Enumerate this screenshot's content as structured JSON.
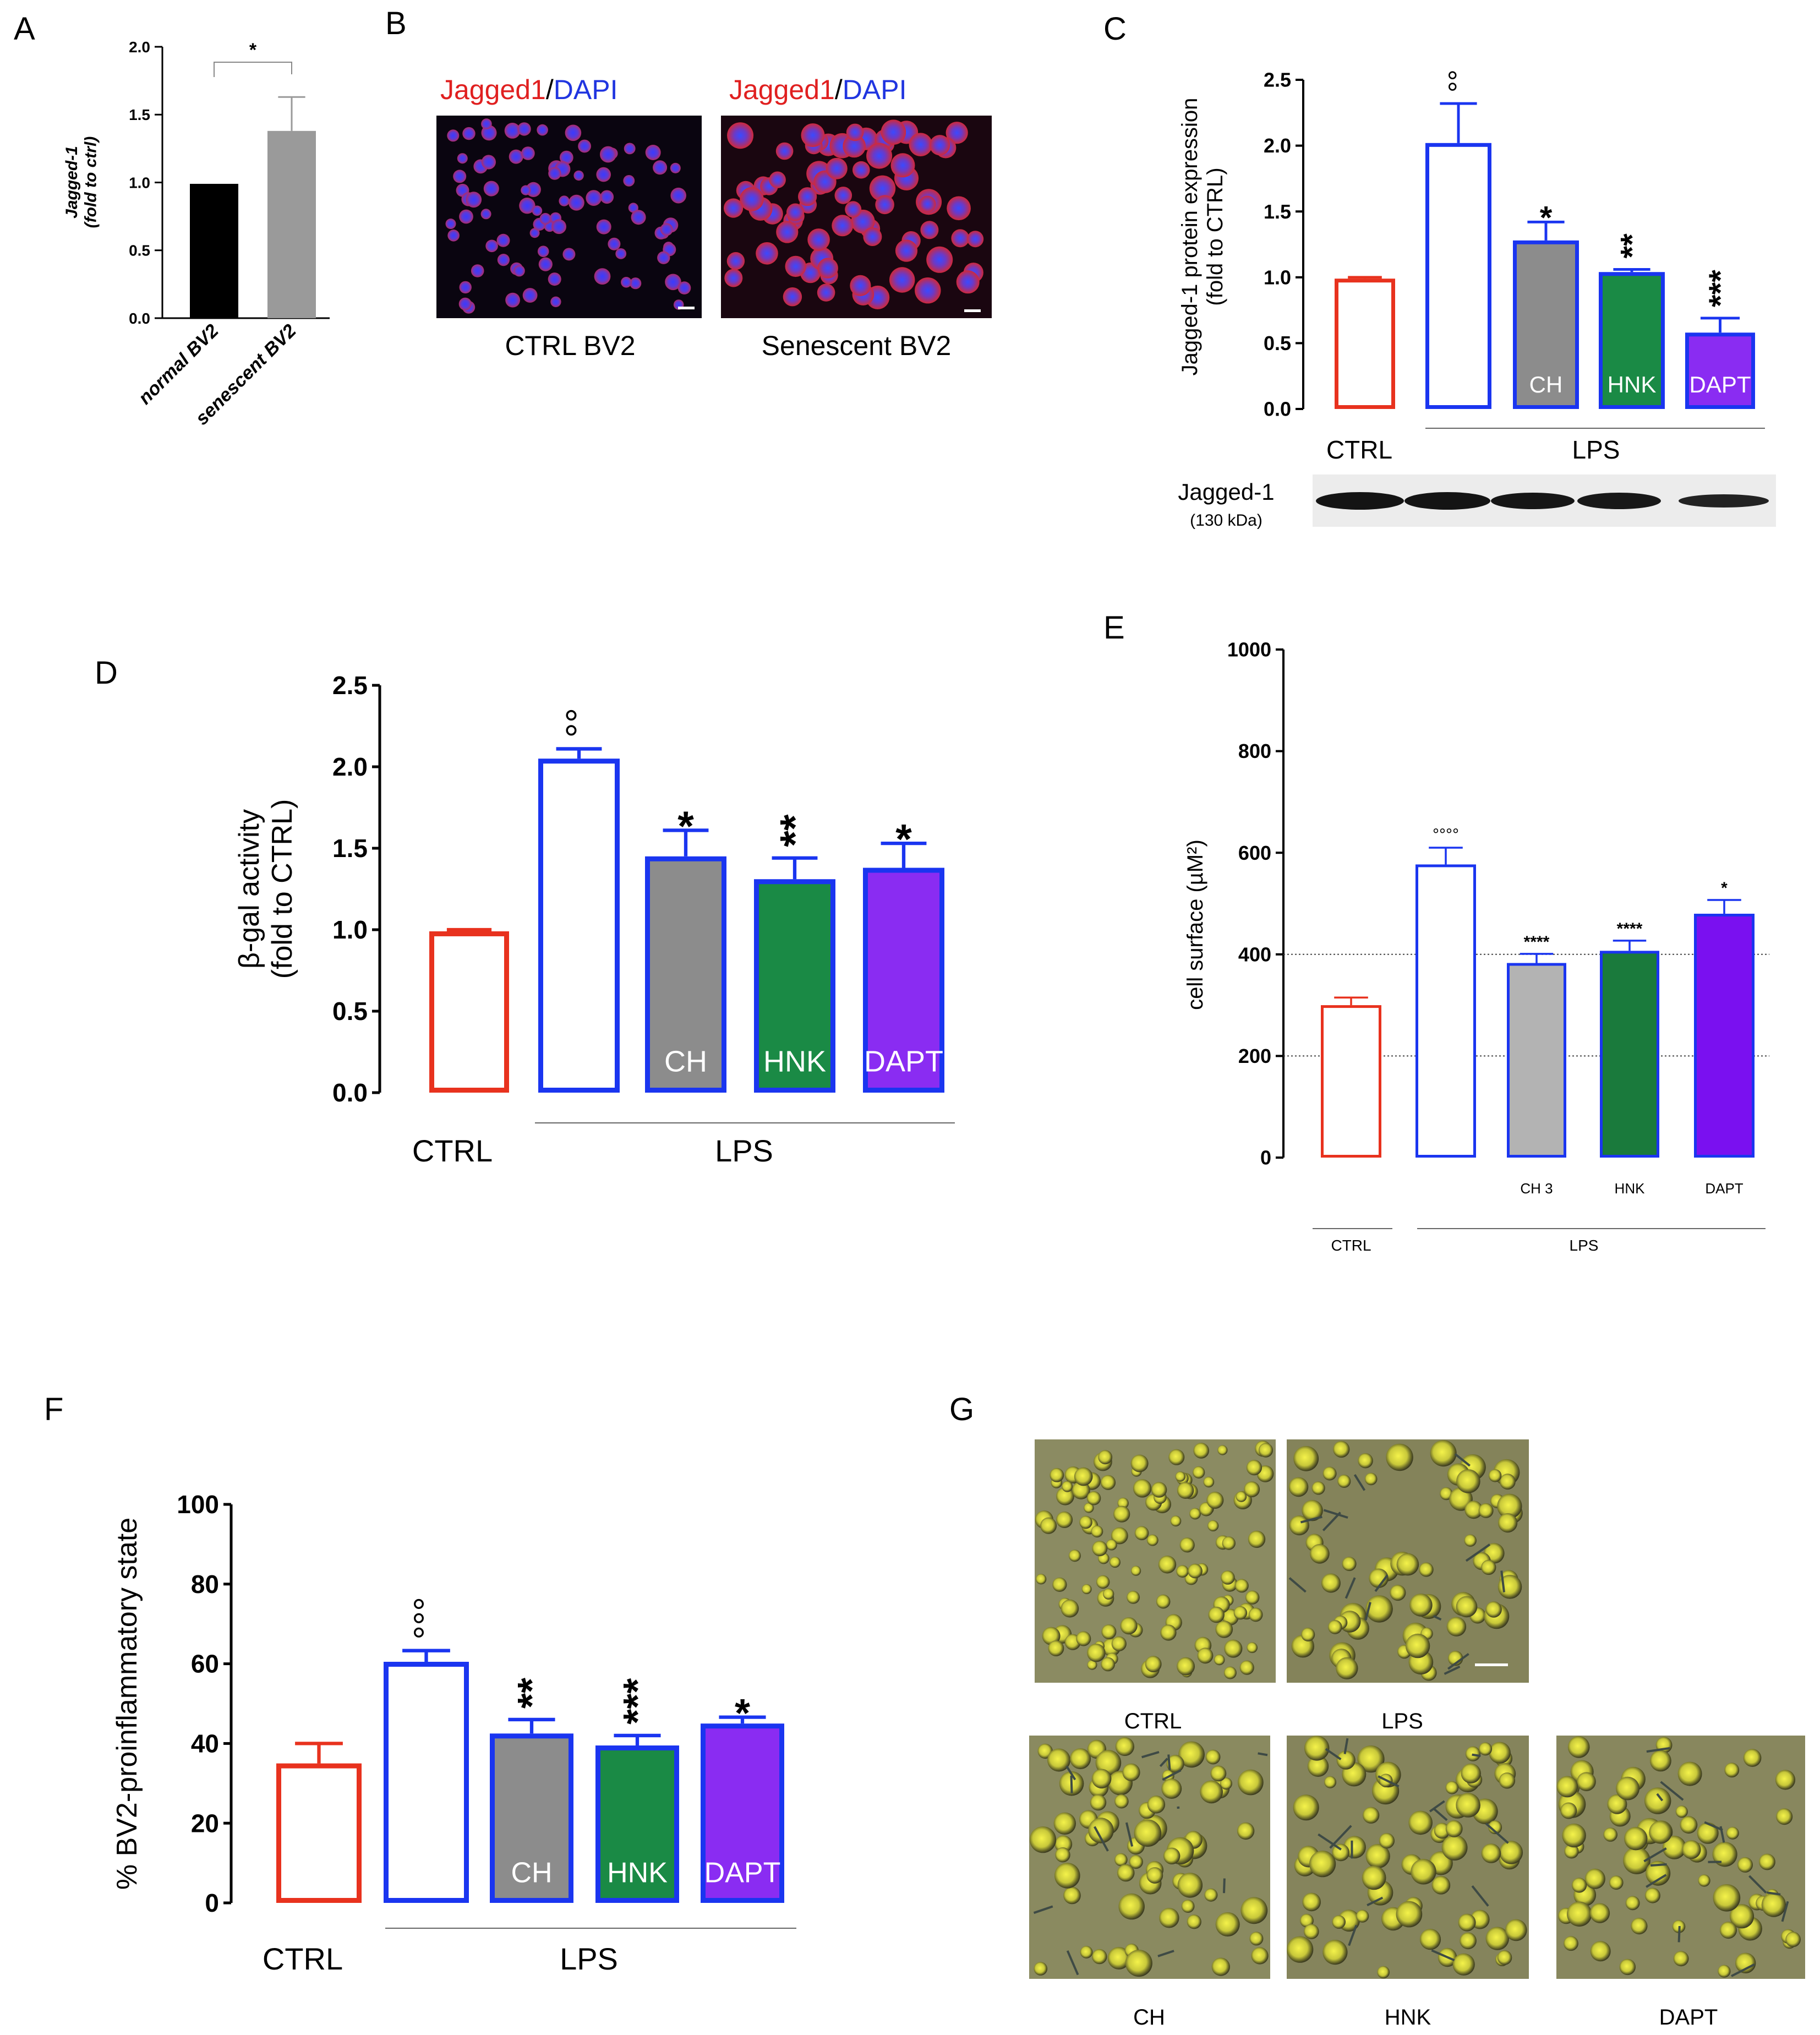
{
  "panels": {
    "A": {
      "letter": "A"
    },
    "B": {
      "letter": "B"
    },
    "C": {
      "letter": "C"
    },
    "D": {
      "letter": "D"
    },
    "E": {
      "letter": "E"
    },
    "F": {
      "letter": "F"
    },
    "G": {
      "letter": "G"
    }
  },
  "micro_B": {
    "left_title_red": "Jagged1",
    "left_title_sep": "/",
    "left_title_blue": "DAPI",
    "right_title_red": "Jagged1",
    "right_title_sep": "/",
    "right_title_blue": "DAPI",
    "left_caption": "CTRL BV2",
    "right_caption": "Senescent BV2"
  },
  "blot_C": {
    "protein": "Jagged-1",
    "mw": "(130 kDa)"
  },
  "micro_G": {
    "captions": [
      "CTRL",
      "LPS",
      "CH",
      "HNK",
      "DAPT"
    ]
  },
  "colors": {
    "ctrl": "#e8321e",
    "lps": "#1a35f0",
    "ch": "#8c8c8c",
    "hnk": "#1a8a45",
    "dapt": "#8a2cf2",
    "a_normal": "#000000",
    "a_senescent": "#9a9a9a",
    "e_ch": "#b3b3b3",
    "e_hnk": "#1a7a3c",
    "e_dapt": "#7a10f0",
    "red_text": "#e02020",
    "blue_text": "#2035e0"
  },
  "chart_data": [
    {
      "id": "A",
      "type": "bar",
      "ylabel_line1": "Jagged-1",
      "ylabel_line2": "(fold to ctrl)",
      "ylim": [
        0,
        2.0
      ],
      "yticks": [
        "0.0",
        "0.5",
        "1.0",
        "1.5",
        "2.0"
      ],
      "categories": [
        "normal BV2",
        "senescent BV2"
      ],
      "values": [
        0.99,
        1.38
      ],
      "errors": [
        0.0,
        0.25
      ],
      "significance": "*"
    },
    {
      "id": "C",
      "type": "bar",
      "ylabel_line1": "Jagged-1 protein expression",
      "ylabel_line2": "(fold to CTRL)",
      "ylim": [
        0,
        2.5
      ],
      "yticks": [
        "0.0",
        "0.5",
        "1.0",
        "1.5",
        "2.0",
        "2.5"
      ],
      "categories": [
        "CTRL",
        "LPS",
        "CH",
        "HNK",
        "DAPT"
      ],
      "bar_labels": [
        "",
        "",
        "CH",
        "HNK",
        "DAPT"
      ],
      "values": [
        0.99,
        2.02,
        1.28,
        1.04,
        0.58
      ],
      "errors": [
        0.01,
        0.3,
        0.14,
        0.02,
        0.11
      ],
      "annotations": [
        "",
        "°°",
        "*",
        "**",
        "***"
      ],
      "group_labels": [
        "CTRL",
        "LPS"
      ]
    },
    {
      "id": "D",
      "type": "bar",
      "ylabel_line1": "β-gal activity",
      "ylabel_line2": "(fold to CTRL)",
      "ylim": [
        0,
        2.5
      ],
      "yticks": [
        "0.0",
        "0.5",
        "1.0",
        "1.5",
        "2.0",
        "2.5"
      ],
      "categories": [
        "CTRL",
        "LPS",
        "CH",
        "HNK",
        "DAPT"
      ],
      "bar_labels": [
        "",
        "",
        "CH",
        "HNK",
        "DAPT"
      ],
      "values": [
        0.99,
        2.05,
        1.45,
        1.31,
        1.38
      ],
      "errors": [
        0.01,
        0.06,
        0.16,
        0.13,
        0.15
      ],
      "annotations": [
        "",
        "°°",
        "*",
        "**",
        "*"
      ],
      "group_labels": [
        "CTRL",
        "LPS"
      ]
    },
    {
      "id": "E",
      "type": "bar",
      "ylabel": "cell surface (µM²)",
      "ylim": [
        0,
        1000
      ],
      "yticks": [
        "0",
        "200",
        "400",
        "600",
        "800",
        "1000"
      ],
      "categories": [
        "CTRL",
        "LPS",
        "CH 3",
        "HNK",
        "DAPT"
      ],
      "bar_labels": [
        "",
        "",
        "CH 3",
        "HNK",
        "DAPT"
      ],
      "values": [
        300,
        577,
        383,
        407,
        480
      ],
      "errors": [
        15,
        33,
        18,
        20,
        27
      ],
      "annotations": [
        "",
        "°°°°",
        "****",
        "****",
        "*"
      ],
      "reference_lines": [
        200,
        400
      ],
      "group_labels": [
        "CTRL",
        "LPS"
      ]
    },
    {
      "id": "F",
      "type": "bar",
      "ylabel": "% BV2-proinflammatory state",
      "ylim": [
        0,
        100
      ],
      "yticks": [
        "0",
        "20",
        "40",
        "60",
        "80",
        "100"
      ],
      "categories": [
        "CTRL",
        "LPS",
        "CH",
        "HNK",
        "DAPT"
      ],
      "bar_labels": [
        "",
        "",
        "CH",
        "HNK",
        "DAPT"
      ],
      "values": [
        35,
        60.5,
        42.5,
        39.5,
        45
      ],
      "errors": [
        5,
        2.8,
        3.5,
        2.5,
        1.6
      ],
      "annotations": [
        "",
        "°°°",
        "**",
        "***",
        "*"
      ],
      "group_labels": [
        "CTRL",
        "LPS"
      ]
    }
  ]
}
